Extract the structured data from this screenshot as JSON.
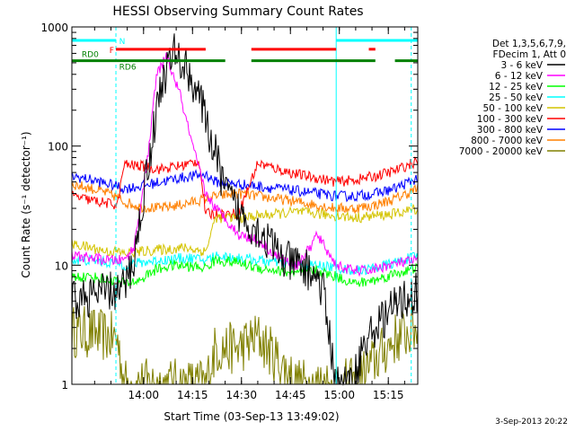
{
  "chart_data": {
    "type": "line",
    "title": "HESSI Observing Summary Count Rates",
    "xlabel": "Start Time (03-Sep-13 13:49:02)",
    "ylabel": "Count Rate (s⁻¹ detector⁻¹)",
    "y_scale": "log",
    "ylim": [
      1,
      1000
    ],
    "xlim_minutes": [
      -11,
      95
    ],
    "x_tick_labels": [
      "14:00",
      "14:15",
      "14:30",
      "14:45",
      "15:00",
      "15:15"
    ],
    "y_tick_labels": [
      "1",
      "10",
      "100",
      "1000"
    ],
    "legend_header": [
      "Det 1,3,5,6,7,9,",
      "FDecim 1, Att 0"
    ],
    "series": [
      {
        "name": "3 - 6 keV",
        "color": "#000000",
        "x": [
          -11,
          -5,
          0,
          3,
          5,
          8,
          12,
          16,
          20,
          24,
          28,
          30,
          33,
          36,
          40,
          44,
          46,
          50,
          54,
          58,
          62,
          64,
          66,
          70,
          75,
          78,
          82,
          86,
          90,
          95
        ],
        "y": [
          5,
          5.5,
          6,
          6,
          6.5,
          11,
          60,
          300,
          620,
          450,
          270,
          160,
          85,
          42,
          28,
          22,
          20,
          15,
          11,
          10,
          9,
          8,
          6,
          1,
          1,
          2,
          3,
          4,
          5,
          6
        ]
      },
      {
        "name": "6 - 12 keV",
        "color": "#ff00ff",
        "x": [
          -11,
          -5,
          0,
          3,
          5,
          8,
          12,
          15,
          18,
          22,
          26,
          30,
          33,
          36,
          40,
          44,
          48,
          50,
          54,
          58,
          62,
          64,
          66,
          70,
          75,
          80,
          86,
          90,
          95
        ],
        "y": [
          12,
          11.5,
          11,
          11,
          11,
          14,
          70,
          400,
          560,
          280,
          100,
          40,
          30,
          25,
          18,
          17,
          15,
          13,
          11,
          10,
          14,
          18,
          15,
          10,
          9,
          9,
          10,
          10.5,
          11
        ]
      },
      {
        "name": "12 - 25 keV",
        "color": "#00ff00",
        "x": [
          -11,
          -5,
          0,
          3,
          5,
          10,
          14,
          20,
          30,
          33,
          40,
          46,
          52,
          58,
          64,
          70,
          76,
          82,
          88,
          95
        ],
        "y": [
          8,
          8,
          7.5,
          7.5,
          7,
          7.5,
          9,
          10,
          9.5,
          11,
          10.5,
          9.5,
          9,
          8.5,
          9,
          8,
          7,
          7.5,
          8.5,
          9.5
        ]
      },
      {
        "name": "25 - 50 keV",
        "color": "#00ffff",
        "x": [
          -11,
          -5,
          0,
          3,
          5,
          10,
          16,
          24,
          30,
          33,
          40,
          46,
          52,
          58,
          64,
          70,
          76,
          82,
          88,
          95
        ],
        "y": [
          11,
          11,
          10.5,
          10.5,
          10,
          10.5,
          11,
          11.5,
          11,
          12,
          11.5,
          11,
          10.5,
          10,
          10,
          9.5,
          9,
          9.5,
          10.5,
          12
        ]
      },
      {
        "name": "50 - 100 keV",
        "color": "#d4c400",
        "x": [
          -11,
          -5,
          0,
          3,
          5,
          10,
          16,
          24,
          30,
          33,
          40,
          46,
          52,
          58,
          64,
          70,
          76,
          82,
          88,
          95
        ],
        "y": [
          15,
          14,
          13,
          13,
          12.5,
          13,
          13.5,
          14,
          13,
          25,
          25,
          26,
          27,
          28,
          27,
          26,
          25,
          26,
          27,
          30
        ]
      },
      {
        "name": "100 - 300 keV",
        "color": "#ff0000",
        "x": [
          -11,
          -5,
          0,
          3,
          5,
          10,
          16,
          22,
          28,
          30,
          33,
          40,
          46,
          52,
          58,
          64,
          70,
          76,
          82,
          88,
          95
        ],
        "y": [
          38,
          35,
          33,
          32,
          70,
          68,
          64,
          68,
          75,
          27,
          27,
          27,
          72,
          64,
          58,
          54,
          50,
          52,
          56,
          62,
          75
        ]
      },
      {
        "name": "300 - 800 keV",
        "color": "#0000ff",
        "x": [
          -11,
          -5,
          0,
          3,
          5,
          10,
          16,
          22,
          30,
          33,
          40,
          46,
          52,
          58,
          64,
          70,
          76,
          82,
          88,
          95
        ],
        "y": [
          56,
          52,
          48,
          46,
          44,
          46,
          50,
          54,
          58,
          50,
          48,
          46,
          44,
          42,
          40,
          38,
          38,
          40,
          44,
          54
        ]
      },
      {
        "name": "800 - 7000 keV",
        "color": "#ff8000",
        "x": [
          -11,
          -5,
          0,
          3,
          5,
          10,
          16,
          22,
          30,
          33,
          40,
          46,
          52,
          58,
          64,
          70,
          76,
          82,
          88,
          95
        ],
        "y": [
          48,
          44,
          40,
          37,
          34,
          31,
          30,
          32,
          36,
          38,
          40,
          38,
          36,
          34,
          32,
          30,
          30,
          32,
          36,
          44
        ]
      },
      {
        "name": "7000 - 20000 keV",
        "color": "#808000",
        "x": [
          -11,
          -5,
          0,
          3,
          5,
          10,
          16,
          22,
          30,
          33,
          40,
          46,
          52,
          58,
          64,
          70,
          76,
          82,
          88,
          95
        ],
        "y": [
          2.8,
          2.7,
          2.5,
          2.4,
          1,
          1,
          1,
          1,
          1,
          2,
          2,
          2.5,
          1.6,
          1,
          1,
          1,
          1,
          1.6,
          2.4,
          3
        ]
      }
    ],
    "state_bars": [
      {
        "label": "N",
        "color": "#00ffff",
        "y": 770,
        "segments": [
          [
            -11,
            2.5
          ],
          [
            70,
            95
          ]
        ]
      },
      {
        "label": "F",
        "color": "#ff0000",
        "y": 650,
        "segments": [
          [
            2.5,
            30
          ],
          [
            44,
            70
          ],
          [
            80,
            82
          ]
        ]
      },
      {
        "label": "RD0",
        "color": "#008000",
        "y": 520,
        "segments": [
          [
            -11,
            2.5
          ]
        ]
      },
      {
        "label": "RD6",
        "color": "#008000",
        "y": 520,
        "segments": [
          [
            2.5,
            36
          ],
          [
            44,
            82
          ],
          [
            88,
            95
          ]
        ]
      }
    ],
    "vertical_markers": [
      {
        "x": 2.5,
        "color": "#00ffff",
        "style": "dashed"
      },
      {
        "x": 70,
        "color": "#00ffff",
        "style": "solid"
      },
      {
        "x": 93,
        "color": "#00ffff",
        "style": "dashed"
      }
    ]
  },
  "timestamp": "3-Sep-2013 20:22"
}
